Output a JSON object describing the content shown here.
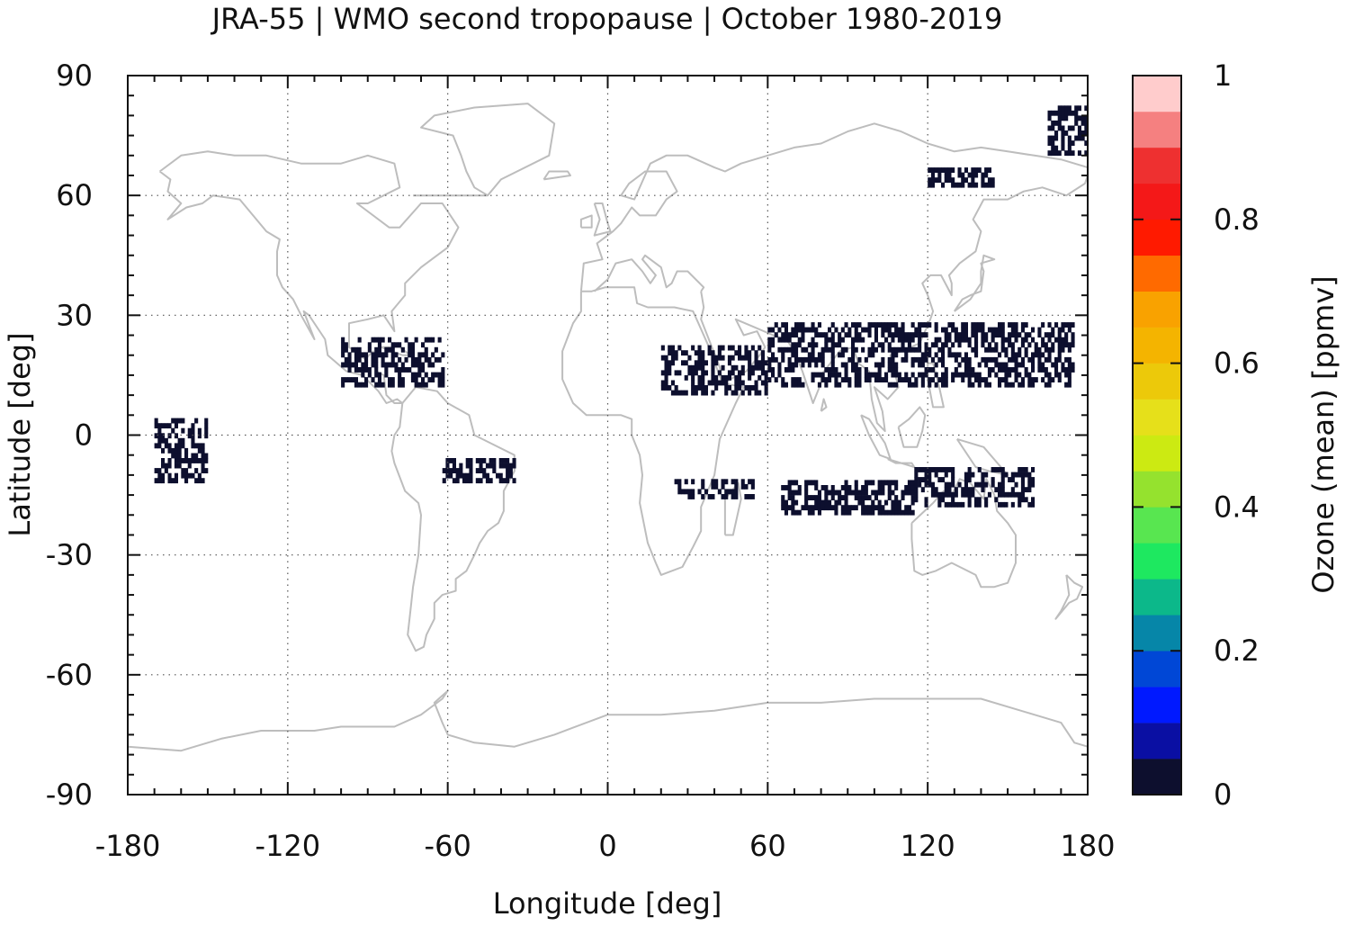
{
  "chart_data": {
    "type": "heatmap",
    "title": "JRA-55 | WMO second tropopause | October 1980-2019",
    "xlabel": "Longitude [deg]",
    "ylabel": "Latitude [deg]",
    "xlim": [
      -180,
      180
    ],
    "ylim": [
      -90,
      90
    ],
    "xticks": [
      -180,
      -120,
      -60,
      0,
      60,
      120,
      180
    ],
    "yticks": [
      -90,
      -60,
      -30,
      0,
      30,
      60,
      90
    ],
    "xtick_labels": [
      "-180",
      "-120",
      "-60",
      "0",
      "60",
      "120",
      "180"
    ],
    "ytick_labels": [
      "-90",
      "-60",
      "-30",
      "0",
      "30",
      "60",
      "90"
    ],
    "grid": true,
    "basemap": "world coastlines",
    "colorbar": {
      "label": "Ozone (mean) [ppmv]",
      "range": [
        0,
        1
      ],
      "ticks": [
        0,
        0.2,
        0.4,
        0.6,
        0.8,
        1
      ],
      "tick_labels": [
        "0",
        "0.2",
        "0.4",
        "0.6",
        "0.8",
        "1"
      ],
      "colors": [
        "#0d0f2e",
        "#0a0fa3",
        "#0019ff",
        "#0047d6",
        "#0686a8",
        "#0cb88a",
        "#1ee860",
        "#58e650",
        "#95e22e",
        "#ccea12",
        "#e6e01a",
        "#ecc90a",
        "#f4b400",
        "#f9a200",
        "#ff6a00",
        "#ff1a00",
        "#f41818",
        "#ee3030",
        "#f58080",
        "#ffcccc"
      ]
    },
    "value_legend": "all plotted cells fall in lowest bin (0-0.05 ppmv)",
    "cells": [
      {
        "region": "NE Siberia",
        "lon": [
          165,
          180
        ],
        "lat": [
          70,
          82
        ],
        "value": 0.02
      },
      {
        "region": "Siberia",
        "lon": [
          120,
          145
        ],
        "lat": [
          62,
          66
        ],
        "value": 0.02
      },
      {
        "region": "Central America / Caribbean",
        "lon": [
          -100,
          -62
        ],
        "lat": [
          12,
          24
        ],
        "value": 0.02
      },
      {
        "region": "Tropical Pacific",
        "lon": [
          -170,
          -150
        ],
        "lat": [
          -12,
          4
        ],
        "value": 0.02
      },
      {
        "region": "Brazil",
        "lon": [
          -62,
          -35
        ],
        "lat": [
          -12,
          -6
        ],
        "value": 0.02
      },
      {
        "region": "East Africa / Arabia",
        "lon": [
          20,
          60
        ],
        "lat": [
          10,
          22
        ],
        "value": 0.02
      },
      {
        "region": "India / SE Asia / W Pacific",
        "lon": [
          60,
          175
        ],
        "lat": [
          12,
          28
        ],
        "value": 0.02
      },
      {
        "region": "Southern Africa / Madagascar",
        "lon": [
          25,
          55
        ],
        "lat": [
          -16,
          -12
        ],
        "value": 0.02
      },
      {
        "region": "S Indian Ocean",
        "lon": [
          65,
          115
        ],
        "lat": [
          -20,
          -12
        ],
        "value": 0.02
      },
      {
        "region": "N Australia / Coral Sea",
        "lon": [
          115,
          160
        ],
        "lat": [
          -18,
          -8
        ],
        "value": 0.02
      }
    ]
  }
}
